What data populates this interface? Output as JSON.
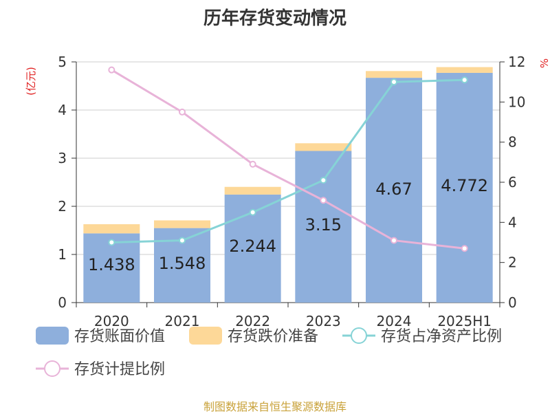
{
  "chart_data": {
    "type": "bar",
    "title": "历年存货变动情况",
    "categories": [
      "2020",
      "2021",
      "2022",
      "2023",
      "2024",
      "2025H1"
    ],
    "y_left": {
      "unit": "(亿元)",
      "range": [
        0,
        5
      ],
      "ticks": [
        "0",
        "1",
        "2",
        "3",
        "4",
        "5"
      ]
    },
    "y_right": {
      "unit": "%",
      "range": [
        0,
        12
      ],
      "ticks": [
        "0",
        "2",
        "4",
        "6",
        "8",
        "10",
        "12"
      ]
    },
    "stacked_series": [
      {
        "name": "存货账面价值",
        "color": "#8eafdc",
        "values": [
          1.438,
          1.548,
          2.244,
          3.15,
          4.67,
          4.772
        ],
        "labels": [
          "1.438",
          "1.548",
          "2.244",
          "3.15",
          "4.67",
          "4.772"
        ]
      },
      {
        "name": "存货跌价准备",
        "color": "#fdd898",
        "values": [
          0.19,
          0.16,
          0.16,
          0.16,
          0.14,
          0.12
        ]
      }
    ],
    "line_series": [
      {
        "name": "存货占净资产比例",
        "color": "#86d3d6",
        "axis": "right",
        "values": [
          3.0,
          3.1,
          4.5,
          6.1,
          11.0,
          11.1
        ]
      },
      {
        "name": "存货计提比例",
        "color": "#e8b3d8",
        "axis": "right",
        "values": [
          11.6,
          9.5,
          6.9,
          5.1,
          3.1,
          2.7
        ]
      }
    ],
    "grid": true,
    "legend_position": "bottom"
  },
  "footer": {
    "source": "制图数据来自恒生聚源数据库"
  }
}
